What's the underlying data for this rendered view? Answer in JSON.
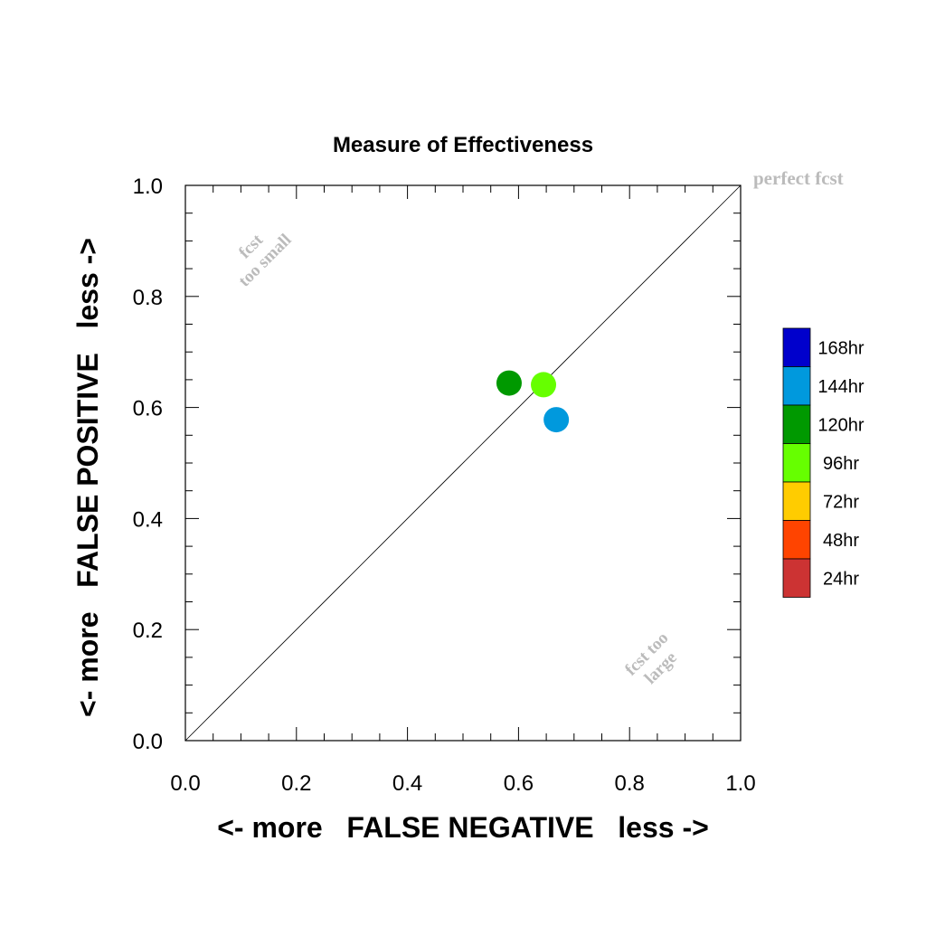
{
  "chart_data": {
    "type": "scatter",
    "title": "Measure of Effectiveness",
    "xlabel": "<- more   FALSE NEGATIVE   less ->",
    "ylabel": "<- more   FALSE POSITIVE   less ->",
    "xlim": [
      0.0,
      1.0
    ],
    "ylim": [
      0.0,
      1.0
    ],
    "x_ticks": [
      "0.0",
      "0.2",
      "0.4",
      "0.6",
      "0.8",
      "1.0"
    ],
    "y_ticks": [
      "0.0",
      "0.2",
      "0.4",
      "0.6",
      "0.8",
      "1.0"
    ],
    "grid": false,
    "diagonal_line": true,
    "annotations": {
      "perfect": "perfect fcst",
      "too_small_line1": "fcst",
      "too_small_line2": "too small",
      "too_large_line1": "fcst too",
      "too_large_line2": "large"
    },
    "points": [
      {
        "label": "120hr",
        "x": 0.583,
        "y": 0.644,
        "color": "#009900"
      },
      {
        "label": "96hr",
        "x": 0.645,
        "y": 0.641,
        "color": "#66ff00"
      },
      {
        "label": "144hr",
        "x": 0.668,
        "y": 0.578,
        "color": "#0099dd"
      }
    ],
    "legend": {
      "placement": "right",
      "entries": [
        {
          "label": "168hr",
          "color": "#0000cc"
        },
        {
          "label": "144hr",
          "color": "#0099dd"
        },
        {
          "label": "120hr",
          "color": "#009900"
        },
        {
          "label": "96hr",
          "color": "#66ff00"
        },
        {
          "label": "72hr",
          "color": "#ffcc00"
        },
        {
          "label": "48hr",
          "color": "#ff4400"
        },
        {
          "label": "24hr",
          "color": "#cc3333"
        }
      ]
    }
  }
}
